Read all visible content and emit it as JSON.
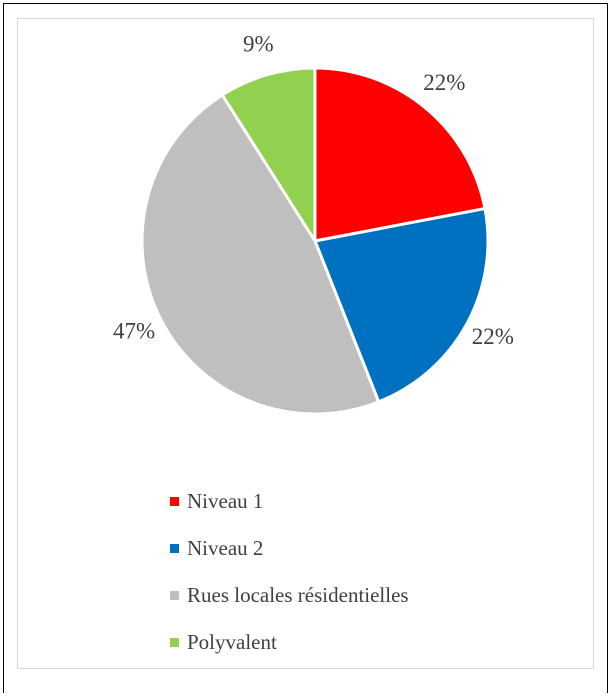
{
  "chart_data": {
    "type": "pie",
    "series": [
      {
        "name": "Niveau 1",
        "value": 22,
        "label": "22%",
        "color": "#ff0000"
      },
      {
        "name": "Niveau 2",
        "value": 22,
        "label": "22%",
        "color": "#0070c0"
      },
      {
        "name": "Rues locales résidentielles",
        "value": 47,
        "label": "47%",
        "color": "#bfbfbf"
      },
      {
        "name": "Polyvalent",
        "value": 9,
        "label": "9%",
        "color": "#92d050"
      }
    ],
    "legend_position": "bottom"
  }
}
